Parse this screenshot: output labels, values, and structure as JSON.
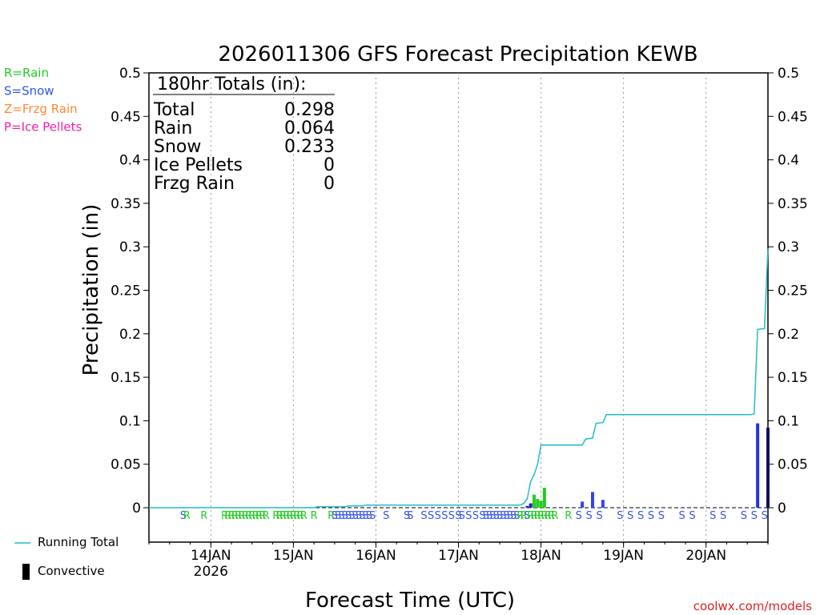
{
  "chart_data": {
    "type": "bar",
    "title": "2026011306 GFS Forecast Precipitation KEWB",
    "xlabel": "Forecast Time (UTC)",
    "ylabel": "Precipitation (in)",
    "ylim": [
      0,
      0.5
    ],
    "xlim_hours": [
      0,
      180
    ],
    "yticks": [
      "0",
      "0.05",
      "0.1",
      "0.15",
      "0.2",
      "0.25",
      "0.3",
      "0.35",
      "0.4",
      "0.45",
      "0.5"
    ],
    "xticks": [
      {
        "hour": 18,
        "label": "14JAN",
        "sublabel": "2026"
      },
      {
        "hour": 42,
        "label": "15JAN",
        "sublabel": ""
      },
      {
        "hour": 66,
        "label": "16JAN",
        "sublabel": ""
      },
      {
        "hour": 90,
        "label": "17JAN",
        "sublabel": ""
      },
      {
        "hour": 114,
        "label": "18JAN",
        "sublabel": ""
      },
      {
        "hour": 138,
        "label": "19JAN",
        "sublabel": ""
      },
      {
        "hour": 162,
        "label": "20JAN",
        "sublabel": ""
      }
    ],
    "grid": "vertical dotted at day boundaries",
    "totals_box": {
      "header": "180hr Totals (in):",
      "rows": [
        {
          "label": "Total",
          "value": "0.298"
        },
        {
          "label": "Rain",
          "value": "0.064"
        },
        {
          "label": "Snow",
          "value": "0.233"
        },
        {
          "label": "Ice Pellets",
          "value": "0"
        },
        {
          "label": "Frzg Rain",
          "value": "0"
        }
      ]
    },
    "ptype_legend": [
      {
        "text": "R=Rain",
        "color": "#22cc22"
      },
      {
        "text": "S=Snow",
        "color": "#3355ee"
      },
      {
        "text": "Z=Frzg Rain",
        "color": "#ff8833"
      },
      {
        "text": "P=Ice Pellets",
        "color": "#ee22aa"
      }
    ],
    "series_legend": [
      {
        "name": "Running Total",
        "kind": "line",
        "color": "#22bbcc"
      },
      {
        "name": "Convective",
        "kind": "bar",
        "color": "#000000"
      }
    ],
    "running_total": [
      [
        0,
        0
      ],
      [
        48,
        0
      ],
      [
        49,
        0.001
      ],
      [
        57,
        0.001
      ],
      [
        58,
        0.002
      ],
      [
        62,
        0.002
      ],
      [
        63,
        0.003
      ],
      [
        108,
        0.003
      ],
      [
        109,
        0.005
      ],
      [
        110,
        0.01
      ],
      [
        111,
        0.03
      ],
      [
        112,
        0.038
      ],
      [
        113,
        0.05
      ],
      [
        114,
        0.072
      ],
      [
        126,
        0.072
      ],
      [
        127,
        0.079
      ],
      [
        129,
        0.08
      ],
      [
        130,
        0.097
      ],
      [
        132,
        0.098
      ],
      [
        133,
        0.107
      ],
      [
        175,
        0.107
      ],
      [
        176,
        0.108
      ],
      [
        177,
        0.205
      ],
      [
        179,
        0.206
      ],
      [
        180,
        0.298
      ]
    ],
    "bars": [
      {
        "hour": 110,
        "value": 0.002,
        "color": "#2222cc"
      },
      {
        "hour": 111,
        "value": 0.005,
        "color": "#2222cc"
      },
      {
        "hour": 112,
        "value": 0.015,
        "color": "#22cc22"
      },
      {
        "hour": 113,
        "value": 0.01,
        "color": "#22cc22"
      },
      {
        "hour": 114,
        "value": 0.008,
        "color": "#22cc22"
      },
      {
        "hour": 115,
        "value": 0.023,
        "color": "#22cc22"
      },
      {
        "hour": 126,
        "value": 0.007,
        "color": "#3344ee"
      },
      {
        "hour": 129,
        "value": 0.018,
        "color": "#3344ee"
      },
      {
        "hour": 132,
        "value": 0.009,
        "color": "#3344ee"
      },
      {
        "hour": 177,
        "value": 0.097,
        "color": "#2233dd"
      },
      {
        "hour": 180,
        "value": 0.092,
        "color": "#111166"
      }
    ],
    "ptype_labels": [
      {
        "hour": 10,
        "type": "S"
      },
      {
        "hour": 11,
        "type": "R"
      },
      {
        "hour": 16,
        "type": "R"
      },
      {
        "hour": 22,
        "type": "R"
      },
      {
        "hour": 23,
        "type": "R"
      },
      {
        "hour": 24,
        "type": "R"
      },
      {
        "hour": 25,
        "type": "R"
      },
      {
        "hour": 26,
        "type": "R"
      },
      {
        "hour": 27,
        "type": "R"
      },
      {
        "hour": 28,
        "type": "R"
      },
      {
        "hour": 29,
        "type": "R"
      },
      {
        "hour": 30,
        "type": "R"
      },
      {
        "hour": 31,
        "type": "R"
      },
      {
        "hour": 32,
        "type": "R"
      },
      {
        "hour": 33,
        "type": "R"
      },
      {
        "hour": 34,
        "type": "R"
      },
      {
        "hour": 37,
        "type": "R"
      },
      {
        "hour": 38,
        "type": "R"
      },
      {
        "hour": 39,
        "type": "R"
      },
      {
        "hour": 40,
        "type": "R"
      },
      {
        "hour": 41,
        "type": "R"
      },
      {
        "hour": 42,
        "type": "R"
      },
      {
        "hour": 43,
        "type": "R"
      },
      {
        "hour": 44,
        "type": "R"
      },
      {
        "hour": 45,
        "type": "R"
      },
      {
        "hour": 48,
        "type": "R"
      },
      {
        "hour": 53,
        "type": "R"
      },
      {
        "hour": 54,
        "type": "S"
      },
      {
        "hour": 55,
        "type": "S"
      },
      {
        "hour": 56,
        "type": "S"
      },
      {
        "hour": 57,
        "type": "S"
      },
      {
        "hour": 58,
        "type": "S"
      },
      {
        "hour": 59,
        "type": "S"
      },
      {
        "hour": 60,
        "type": "S"
      },
      {
        "hour": 61,
        "type": "S"
      },
      {
        "hour": 62,
        "type": "S"
      },
      {
        "hour": 63,
        "type": "S"
      },
      {
        "hour": 64,
        "type": "S"
      },
      {
        "hour": 65,
        "type": "S"
      },
      {
        "hour": 69,
        "type": "S"
      },
      {
        "hour": 75,
        "type": "S"
      },
      {
        "hour": 76,
        "type": "S"
      },
      {
        "hour": 80,
        "type": "S"
      },
      {
        "hour": 82,
        "type": "S"
      },
      {
        "hour": 84,
        "type": "S"
      },
      {
        "hour": 86,
        "type": "S"
      },
      {
        "hour": 88,
        "type": "S"
      },
      {
        "hour": 90,
        "type": "S"
      },
      {
        "hour": 91,
        "type": "S"
      },
      {
        "hour": 93,
        "type": "S"
      },
      {
        "hour": 95,
        "type": "S"
      },
      {
        "hour": 97,
        "type": "S"
      },
      {
        "hour": 98,
        "type": "S"
      },
      {
        "hour": 99,
        "type": "S"
      },
      {
        "hour": 100,
        "type": "S"
      },
      {
        "hour": 101,
        "type": "S"
      },
      {
        "hour": 102,
        "type": "S"
      },
      {
        "hour": 103,
        "type": "S"
      },
      {
        "hour": 104,
        "type": "S"
      },
      {
        "hour": 105,
        "type": "S"
      },
      {
        "hour": 106,
        "type": "S"
      },
      {
        "hour": 107,
        "type": "S"
      },
      {
        "hour": 108,
        "type": "R"
      },
      {
        "hour": 109,
        "type": "R"
      },
      {
        "hour": 110,
        "type": "S"
      },
      {
        "hour": 111,
        "type": "R"
      },
      {
        "hour": 112,
        "type": "R"
      },
      {
        "hour": 113,
        "type": "R"
      },
      {
        "hour": 114,
        "type": "R"
      },
      {
        "hour": 115,
        "type": "R"
      },
      {
        "hour": 116,
        "type": "R"
      },
      {
        "hour": 117,
        "type": "R"
      },
      {
        "hour": 118,
        "type": "R"
      },
      {
        "hour": 122,
        "type": "R"
      },
      {
        "hour": 125,
        "type": "S"
      },
      {
        "hour": 128,
        "type": "S"
      },
      {
        "hour": 131,
        "type": "S"
      },
      {
        "hour": 137,
        "type": "S"
      },
      {
        "hour": 140,
        "type": "S"
      },
      {
        "hour": 143,
        "type": "S"
      },
      {
        "hour": 146,
        "type": "S"
      },
      {
        "hour": 149,
        "type": "S"
      },
      {
        "hour": 155,
        "type": "S"
      },
      {
        "hour": 158,
        "type": "S"
      },
      {
        "hour": 164,
        "type": "S"
      },
      {
        "hour": 167,
        "type": "S"
      },
      {
        "hour": 173,
        "type": "S"
      },
      {
        "hour": 176,
        "type": "S"
      },
      {
        "hour": 179,
        "type": "S"
      }
    ]
  },
  "colors": {
    "rain": "#22cc22",
    "snow": "#3355ee",
    "running_total": "#22bbcc",
    "credit": "#dd2222"
  },
  "credit": "coolwx.com/models"
}
